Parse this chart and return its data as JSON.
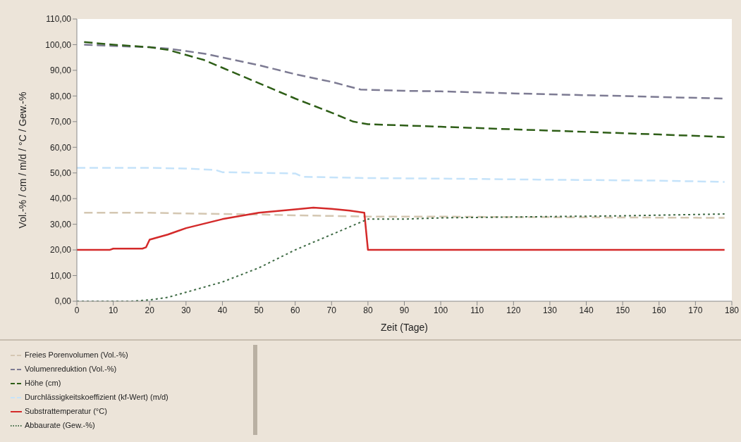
{
  "chart_data": {
    "type": "line",
    "xlabel": "Zeit (Tage)",
    "ylabel": "Vol.-% / cm / m/d / °C / Gew.-%",
    "xlim": [
      0,
      180
    ],
    "xticks": [
      0,
      10,
      20,
      30,
      40,
      50,
      60,
      70,
      80,
      90,
      100,
      110,
      120,
      130,
      140,
      150,
      160,
      170,
      180
    ],
    "ylim": [
      0,
      110
    ],
    "yticks": [
      {
        "value": 0,
        "label": "0,00"
      },
      {
        "value": 10,
        "label": "10,00"
      },
      {
        "value": 20,
        "label": "20,00"
      },
      {
        "value": 30,
        "label": "30,00"
      },
      {
        "value": 40,
        "label": "40,00"
      },
      {
        "value": 50,
        "label": "50,00"
      },
      {
        "value": 60,
        "label": "60,00"
      },
      {
        "value": 70,
        "label": "70,00"
      },
      {
        "value": 80,
        "label": "80,00"
      },
      {
        "value": 90,
        "label": "90,00"
      },
      {
        "value": 100,
        "label": "100,00"
      },
      {
        "value": 110,
        "label": "110,00"
      }
    ],
    "legend": "bottom left",
    "marker": "none",
    "series": [
      {
        "name": "Freies Porenvolumen (Vol.-%)",
        "color": "#d4c7b2",
        "line_style": "dashed",
        "x": [
          2,
          20,
          30,
          40,
          50,
          60,
          80,
          100,
          120,
          140,
          160,
          178
        ],
        "values": [
          34.5,
          34.5,
          34.2,
          34,
          33.8,
          33.5,
          33,
          33,
          32.8,
          32.7,
          32.6,
          32.5
        ]
      },
      {
        "name": "Volumenreduktion (Vol.-%)",
        "color": "#7d7b93",
        "line_style": "dashed",
        "x": [
          2,
          10,
          20,
          25,
          30,
          35,
          40,
          50,
          60,
          70,
          78,
          90,
          100,
          120,
          140,
          150,
          160,
          178
        ],
        "values": [
          100,
          99.5,
          99,
          98.5,
          97.5,
          96.5,
          95,
          92,
          88.5,
          85.5,
          82.5,
          82,
          81.8,
          81,
          80.3,
          80,
          79.6,
          79
        ]
      },
      {
        "name": "Höhe (cm)",
        "color": "#2e5e17",
        "line_style": "dashed",
        "x": [
          2,
          10,
          20,
          25,
          30,
          35,
          40,
          50,
          60,
          70,
          76,
          80,
          90,
          100,
          120,
          140,
          160,
          178
        ],
        "values": [
          101,
          100,
          99,
          98,
          96,
          94,
          91,
          85,
          79,
          73.5,
          70,
          69,
          68.5,
          68,
          67,
          66,
          65,
          64
        ]
      },
      {
        "name": "Durchlässigkeitskoeffizient (kf-Wert) (m/d)",
        "color": "#c5e3fa",
        "line_style": "dashed",
        "x": [
          0,
          20,
          30,
          38,
          40,
          60,
          62,
          80,
          100,
          120,
          160,
          178
        ],
        "values": [
          52,
          52,
          51.7,
          51.2,
          50.3,
          49.8,
          48.5,
          48,
          47.8,
          47.5,
          47,
          46.5
        ]
      },
      {
        "name": "Substrattemperatur (°C)",
        "color": "#d42a2a",
        "line_style": "solid",
        "x": [
          0,
          9,
          10,
          18,
          19,
          20,
          25,
          30,
          40,
          50,
          60,
          65,
          70,
          75,
          79,
          80,
          100,
          140,
          178
        ],
        "values": [
          20,
          20,
          20.5,
          20.5,
          21,
          24,
          26,
          28.5,
          32,
          34.5,
          35.8,
          36.5,
          36,
          35.3,
          34.5,
          20,
          20,
          20,
          20
        ]
      },
      {
        "name": "Abbaurate (Gew.-%)",
        "color": "#3f6b45",
        "line_style": "dotted",
        "x": [
          0,
          15,
          20,
          25,
          30,
          40,
          50,
          60,
          70,
          80,
          90,
          100,
          130,
          150,
          178
        ],
        "values": [
          0,
          0,
          0.5,
          1.5,
          3.5,
          7.5,
          13,
          20,
          26,
          32,
          32,
          32.5,
          33,
          33.3,
          34
        ]
      }
    ]
  }
}
